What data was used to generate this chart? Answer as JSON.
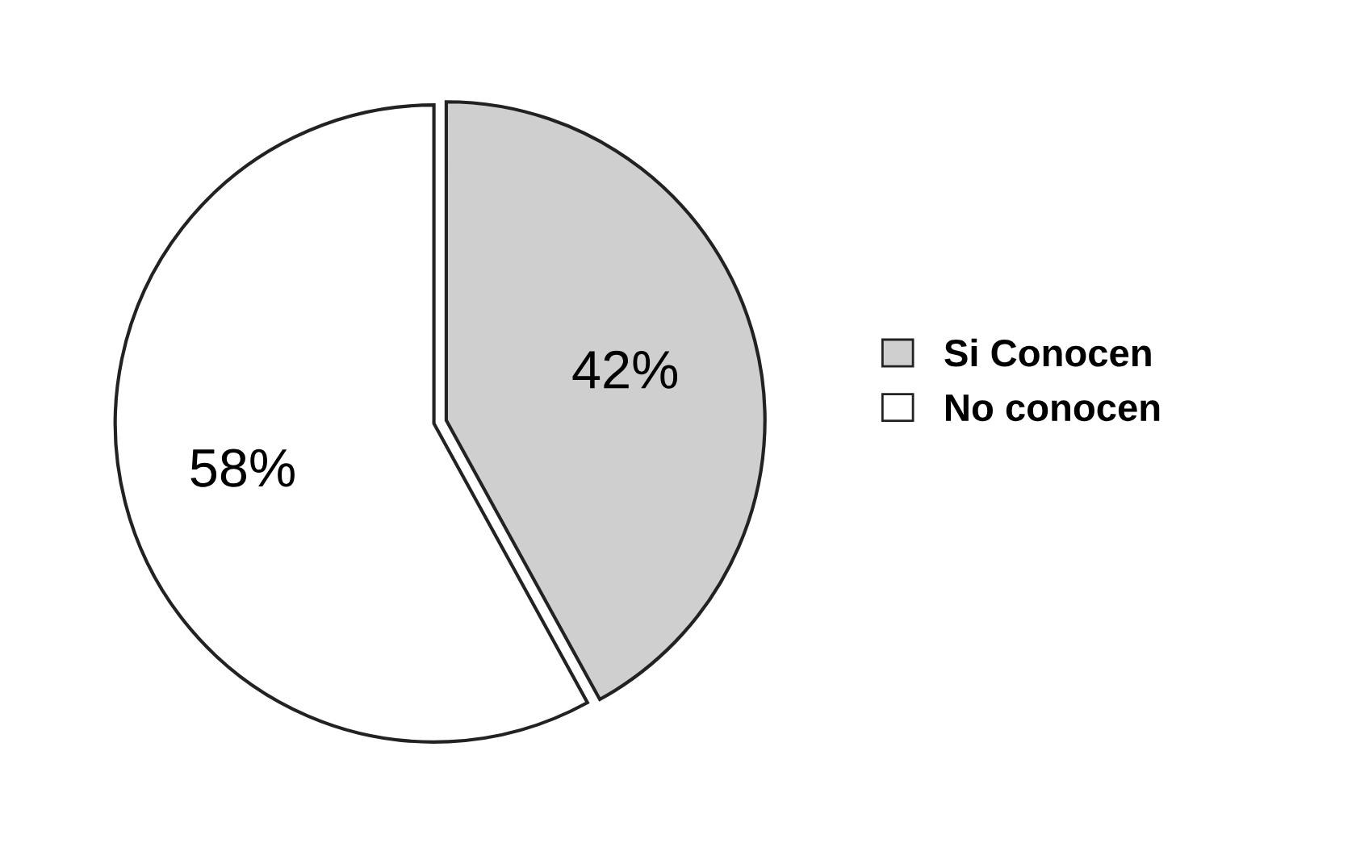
{
  "chart_data": {
    "type": "pie",
    "categories": [
      "Si Conocen",
      "No conocen"
    ],
    "values": [
      42,
      58
    ],
    "colors": [
      "#cfcfcf",
      "#ffffff"
    ],
    "value_labels": [
      "42%",
      "58%"
    ],
    "legend": "right"
  }
}
